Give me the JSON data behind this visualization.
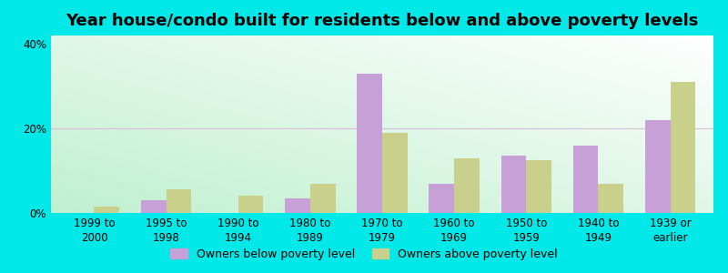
{
  "title": "Year house/condo built for residents below and above poverty levels",
  "categories": [
    "1999 to\n2000",
    "1995 to\n1998",
    "1990 to\n1994",
    "1980 to\n1989",
    "1970 to\n1979",
    "1960 to\n1969",
    "1950 to\n1959",
    "1940 to\n1949",
    "1939 or\nearlier"
  ],
  "below_poverty": [
    0.0,
    3.0,
    0.0,
    3.5,
    33.0,
    7.0,
    13.5,
    16.0,
    22.0
  ],
  "above_poverty": [
    1.5,
    5.5,
    4.0,
    7.0,
    19.0,
    13.0,
    12.5,
    7.0,
    31.0
  ],
  "below_color": "#c8a0d8",
  "above_color": "#c8d08c",
  "ylim": [
    0,
    42
  ],
  "yticks": [
    0,
    20,
    40
  ],
  "ytick_labels": [
    "0%",
    "20%",
    "40%"
  ],
  "background_color": "#00e8e8",
  "bar_width": 0.35,
  "legend_below_label": "Owners below poverty level",
  "legend_above_label": "Owners above poverty level",
  "title_fontsize": 13,
  "tick_fontsize": 8.5
}
